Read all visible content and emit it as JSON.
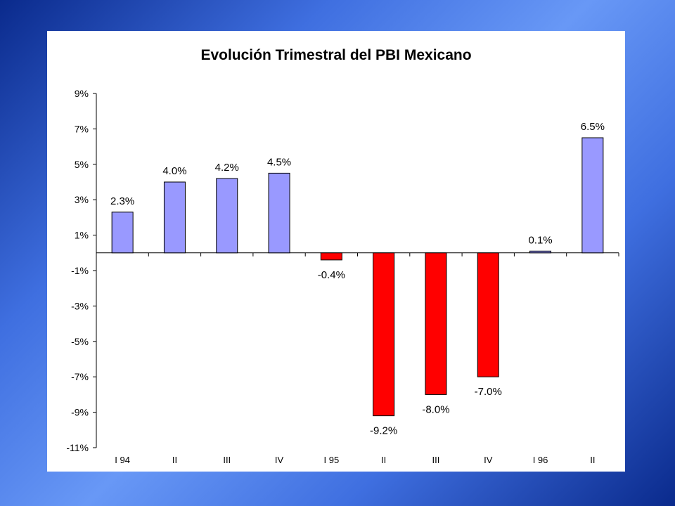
{
  "chart_data": {
    "type": "bar",
    "title": "Evolución Trimestral del PBI Mexicano",
    "xlabel": "",
    "ylabel": "",
    "categories": [
      "I 94",
      "II",
      "III",
      "IV",
      "I 95",
      "II",
      "III",
      "IV",
      "I 96",
      "II"
    ],
    "values": [
      2.3,
      4.0,
      4.2,
      4.5,
      -0.4,
      -9.2,
      -8.0,
      -7.0,
      0.1,
      6.5
    ],
    "data_labels": [
      "2.3%",
      "4.0%",
      "4.2%",
      "4.5%",
      "-0.4%",
      "-9.2%",
      "-8.0%",
      "-7.0%",
      "0.1%",
      "6.5%"
    ],
    "ylim": [
      -11,
      9
    ],
    "y_ticks": [
      9,
      7,
      5,
      3,
      1,
      -1,
      -3,
      -5,
      -7,
      -9,
      -11
    ],
    "y_tick_labels": [
      "9%",
      "7%",
      "5%",
      "3%",
      "1%",
      "-1%",
      "-3%",
      "-5%",
      "-7%",
      "-9%",
      "-11%"
    ],
    "grid": false,
    "legend": "none",
    "colors": {
      "positive": "#9999ff",
      "negative": "#ff0000",
      "bar_outline": "#000000",
      "axis": "#000000"
    }
  }
}
